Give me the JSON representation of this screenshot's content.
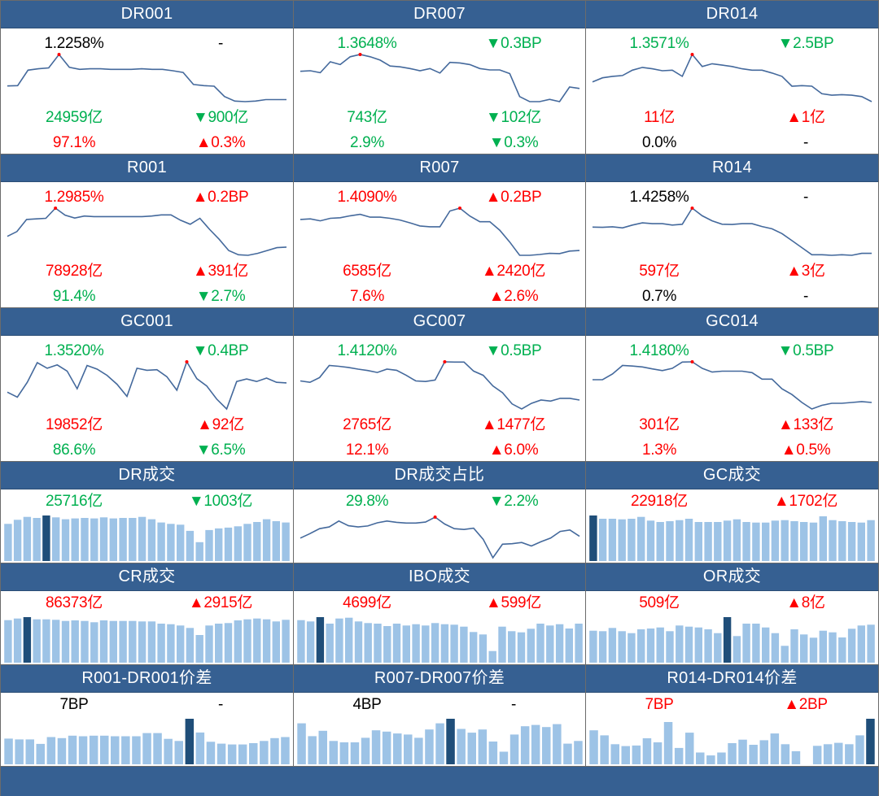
{
  "palette": {
    "red": "#ff0000",
    "green": "#00b050",
    "black": "#000000",
    "header": "#366092",
    "line": "#44699c",
    "marker": "#ff0000",
    "bar": "#9dc3e6",
    "bar_highlight": "#1f4e79"
  },
  "panels": [
    {
      "title": "DR001",
      "type": "rate",
      "rate": {
        "text": "1.2258%",
        "color": "black"
      },
      "rate_change": {
        "text": "-",
        "color": "black"
      },
      "volume": {
        "text": "24959亿",
        "color": "green"
      },
      "volume_change": {
        "text": "▼900亿",
        "color": "green"
      },
      "share": {
        "text": "97.1%",
        "color": "red"
      },
      "share_change": {
        "text": "▲0.3%",
        "color": "red"
      },
      "series": [
        65,
        66,
        120,
        125,
        128,
        175,
        130,
        123,
        125,
        125,
        123,
        123,
        123,
        125,
        123,
        123,
        118,
        112,
        70,
        66,
        64,
        28,
        12,
        10,
        12,
        17,
        17,
        17
      ],
      "highlight_index": 5
    },
    {
      "title": "DR007",
      "type": "rate",
      "rate": {
        "text": "1.3648%",
        "color": "green"
      },
      "rate_change": {
        "text": "▼0.3BP",
        "color": "green"
      },
      "volume": {
        "text": "743亿",
        "color": "green"
      },
      "volume_change": {
        "text": "▼102亿",
        "color": "green"
      },
      "share": {
        "text": "2.9%",
        "color": "green"
      },
      "share_change": {
        "text": "▼0.3%",
        "color": "green"
      },
      "series": [
        118,
        120,
        113,
        152,
        142,
        170,
        178,
        170,
        158,
        137,
        134,
        128,
        120,
        128,
        112,
        150,
        148,
        142,
        128,
        123,
        123,
        110,
        28,
        10,
        10,
        18,
        10,
        62,
        57
      ],
      "highlight_index": 6
    },
    {
      "title": "DR014",
      "type": "rate",
      "rate": {
        "text": "1.3571%",
        "color": "green"
      },
      "rate_change": {
        "text": "▼2.5BP",
        "color": "green"
      },
      "volume": {
        "text": "11亿",
        "color": "red"
      },
      "volume_change": {
        "text": "▲1亿",
        "color": "red"
      },
      "share": {
        "text": "0.0%",
        "color": "black"
      },
      "share_change": {
        "text": "-",
        "color": "black"
      },
      "series": [
        80,
        95,
        100,
        103,
        122,
        132,
        127,
        120,
        122,
        100,
        178,
        135,
        145,
        140,
        135,
        127,
        122,
        122,
        112,
        100,
        65,
        67,
        65,
        38,
        33,
        35,
        33,
        28,
        10
      ],
      "highlight_index": 10
    },
    {
      "title": "R001",
      "type": "rate",
      "rate": {
        "text": "1.2985%",
        "color": "red"
      },
      "rate_change": {
        "text": "▲0.2BP",
        "color": "red"
      },
      "volume": {
        "text": "78928亿",
        "color": "red"
      },
      "volume_change": {
        "text": "▲391亿",
        "color": "red"
      },
      "share": {
        "text": "91.4%",
        "color": "green"
      },
      "share_change": {
        "text": "▼2.7%",
        "color": "green"
      },
      "series": [
        80,
        97,
        140,
        142,
        144,
        180,
        155,
        145,
        152,
        150,
        150,
        150,
        150,
        150,
        150,
        152,
        156,
        156,
        137,
        123,
        144,
        105,
        70,
        30,
        15,
        13,
        20,
        30,
        40,
        42
      ],
      "highlight_index": 5
    },
    {
      "title": "R007",
      "type": "rate",
      "rate": {
        "text": "1.4090%",
        "color": "red"
      },
      "rate_change": {
        "text": "▲0.2BP",
        "color": "red"
      },
      "volume": {
        "text": "6585亿",
        "color": "red"
      },
      "volume_change": {
        "text": "▲2420亿",
        "color": "red"
      },
      "share": {
        "text": "7.6%",
        "color": "red"
      },
      "share_change": {
        "text": "▲2.6%",
        "color": "red"
      },
      "series": [
        140,
        142,
        135,
        144,
        146,
        153,
        158,
        148,
        148,
        144,
        138,
        128,
        117,
        114,
        114,
        170,
        180,
        152,
        132,
        132,
        102,
        60,
        13,
        13,
        16,
        20,
        19,
        28,
        30
      ],
      "highlight_index": 16
    },
    {
      "title": "R014",
      "type": "rate",
      "rate": {
        "text": "1.4258%",
        "color": "black"
      },
      "rate_change": {
        "text": "-",
        "color": "black"
      },
      "volume": {
        "text": "597亿",
        "color": "red"
      },
      "volume_change": {
        "text": "▲3亿",
        "color": "red"
      },
      "share": {
        "text": "0.7%",
        "color": "black"
      },
      "share_change": {
        "text": "-",
        "color": "black"
      },
      "series": [
        123,
        122,
        124,
        120,
        130,
        138,
        135,
        135,
        130,
        133,
        190,
        163,
        145,
        133,
        132,
        135,
        135,
        125,
        117,
        100,
        75,
        50,
        25,
        25,
        23,
        25,
        23,
        30,
        30
      ],
      "highlight_index": 10
    },
    {
      "title": "GC001",
      "type": "rate",
      "rate": {
        "text": "1.3520%",
        "color": "green"
      },
      "rate_change": {
        "text": "▼0.4BP",
        "color": "green"
      },
      "volume": {
        "text": "19852亿",
        "color": "red"
      },
      "volume_change": {
        "text": "▲92亿",
        "color": "red"
      },
      "share": {
        "text": "86.6%",
        "color": "green"
      },
      "share_change": {
        "text": "▼6.5%",
        "color": "green"
      },
      "series": [
        75,
        57,
        110,
        180,
        160,
        172,
        150,
        87,
        170,
        157,
        135,
        103,
        60,
        160,
        153,
        155,
        130,
        82,
        183,
        123,
        97,
        50,
        15,
        113,
        122,
        113,
        125,
        110,
        108
      ],
      "highlight_index": 18
    },
    {
      "title": "GC007",
      "type": "rate",
      "rate": {
        "text": "1.4120%",
        "color": "green"
      },
      "rate_change": {
        "text": "▼0.5BP",
        "color": "green"
      },
      "volume": {
        "text": "2765亿",
        "color": "red"
      },
      "volume_change": {
        "text": "▲1477亿",
        "color": "red"
      },
      "share": {
        "text": "12.1%",
        "color": "red"
      },
      "share_change": {
        "text": "▲6.0%",
        "color": "red"
      },
      "series": [
        115,
        110,
        127,
        170,
        167,
        163,
        157,
        152,
        145,
        157,
        153,
        135,
        115,
        113,
        118,
        183,
        182,
        182,
        150,
        135,
        97,
        73,
        33,
        15,
        35,
        47,
        43,
        53,
        53,
        47
      ],
      "highlight_index": 15
    },
    {
      "title": "GC014",
      "type": "rate",
      "rate": {
        "text": "1.4180%",
        "color": "green"
      },
      "rate_change": {
        "text": "▼0.5BP",
        "color": "green"
      },
      "volume": {
        "text": "301亿",
        "color": "red"
      },
      "volume_change": {
        "text": "▲133亿",
        "color": "red"
      },
      "share": {
        "text": "1.3%",
        "color": "red"
      },
      "share_change": {
        "text": "▲0.5%",
        "color": "red"
      },
      "series": [
        120,
        120,
        140,
        170,
        168,
        165,
        158,
        152,
        160,
        182,
        183,
        160,
        147,
        150,
        150,
        150,
        145,
        122,
        122,
        88,
        68,
        40,
        17,
        30,
        37,
        37,
        40,
        43,
        40
      ],
      "highlight_index": 10
    },
    {
      "title": "DR成交",
      "type": "bars",
      "value": {
        "text": "25716亿",
        "color": "green"
      },
      "change": {
        "text": "▼1003亿",
        "color": "green"
      },
      "series": [
        138,
        153,
        164,
        160,
        169,
        162,
        155,
        158,
        160,
        158,
        162,
        158,
        160,
        160,
        164,
        155,
        143,
        138,
        135,
        112,
        70,
        115,
        121,
        124,
        129,
        138,
        145,
        155,
        148,
        143
      ],
      "highlight_index": 4
    },
    {
      "title": "DR成交占比",
      "type": "line",
      "value": {
        "text": "29.8%",
        "color": "green"
      },
      "change": {
        "text": "▼2.2%",
        "color": "green"
      },
      "series": [
        90,
        108,
        128,
        135,
        159,
        140,
        135,
        139,
        152,
        159,
        154,
        151,
        151,
        155,
        175,
        147,
        128,
        125,
        130,
        85,
        10,
        65,
        67,
        72,
        58,
        75,
        90,
        117,
        123,
        97
      ],
      "highlight_index": 14
    },
    {
      "title": "GC成交",
      "type": "bars",
      "value": {
        "text": "22918亿",
        "color": "red"
      },
      "change": {
        "text": "▲1702亿",
        "color": "red"
      },
      "series": [
        168,
        156,
        156,
        154,
        156,
        163,
        149,
        144,
        147,
        151,
        156,
        144,
        144,
        144,
        149,
        154,
        144,
        142,
        142,
        149,
        151,
        147,
        144,
        142,
        165,
        151,
        147,
        144,
        142,
        151
      ],
      "highlight_index": 0
    },
    {
      "title": "CR成交",
      "type": "bars",
      "value": {
        "text": "86373亿",
        "color": "red"
      },
      "change": {
        "text": "▲2915亿",
        "color": "red"
      },
      "series": [
        157,
        163,
        168,
        160,
        160,
        158,
        154,
        156,
        154,
        149,
        156,
        154,
        154,
        154,
        152,
        152,
        144,
        142,
        137,
        128,
        102,
        137,
        144,
        146,
        156,
        160,
        163,
        160,
        152,
        158
      ],
      "highlight_index": 2
    },
    {
      "title": "IBO成交",
      "type": "bars",
      "value": {
        "text": "4699亿",
        "color": "red"
      },
      "change": {
        "text": "▲599亿",
        "color": "red"
      },
      "series": [
        157,
        152,
        168,
        144,
        163,
        166,
        152,
        146,
        144,
        135,
        144,
        137,
        142,
        137,
        146,
        142,
        140,
        133,
        113,
        104,
        43,
        133,
        116,
        112,
        125,
        144,
        137,
        142,
        126,
        144
      ],
      "highlight_index": 2
    },
    {
      "title": "OR成交",
      "type": "bars",
      "value": {
        "text": "509亿",
        "color": "red"
      },
      "change": {
        "text": "▲8亿",
        "color": "red"
      },
      "series": [
        118,
        116,
        128,
        116,
        109,
        123,
        126,
        130,
        116,
        137,
        133,
        130,
        123,
        109,
        168,
        98,
        144,
        144,
        130,
        109,
        62,
        123,
        104,
        92,
        118,
        112,
        93,
        125,
        137,
        140
      ],
      "highlight_index": 14
    },
    {
      "title": "R001-DR001价差",
      "type": "bars",
      "value": {
        "text": "7BP",
        "color": "black"
      },
      "change": {
        "text": "-",
        "color": "black"
      },
      "series": [
        97,
        94,
        94,
        77,
        103,
        99,
        108,
        106,
        108,
        108,
        106,
        106,
        106,
        118,
        118,
        96,
        88,
        172,
        120,
        85,
        78,
        75,
        75,
        80,
        88,
        99,
        103
      ],
      "highlight_index": 17
    },
    {
      "title": "R007-DR007价差",
      "type": "bars",
      "value": {
        "text": "4BP",
        "color": "black"
      },
      "change": {
        "text": "-",
        "color": "black"
      },
      "series": [
        153,
        105,
        125,
        87,
        82,
        82,
        99,
        127,
        122,
        115,
        111,
        99,
        130,
        153,
        170,
        132,
        118,
        130,
        85,
        47,
        111,
        142,
        147,
        139,
        150,
        77,
        87
      ],
      "highlight_index": 14
    },
    {
      "title": "R014-DR014价差",
      "type": "bars",
      "value": {
        "text": "7BP",
        "color": "red"
      },
      "change": {
        "text": "▲2BP",
        "color": "red"
      },
      "series": [
        127,
        108,
        75,
        68,
        70,
        97,
        82,
        158,
        61,
        118,
        44,
        33,
        44,
        79,
        92,
        73,
        90,
        115,
        75,
        49,
        null,
        69,
        75,
        80,
        75,
        108,
        170
      ],
      "highlight_index": 26
    }
  ]
}
